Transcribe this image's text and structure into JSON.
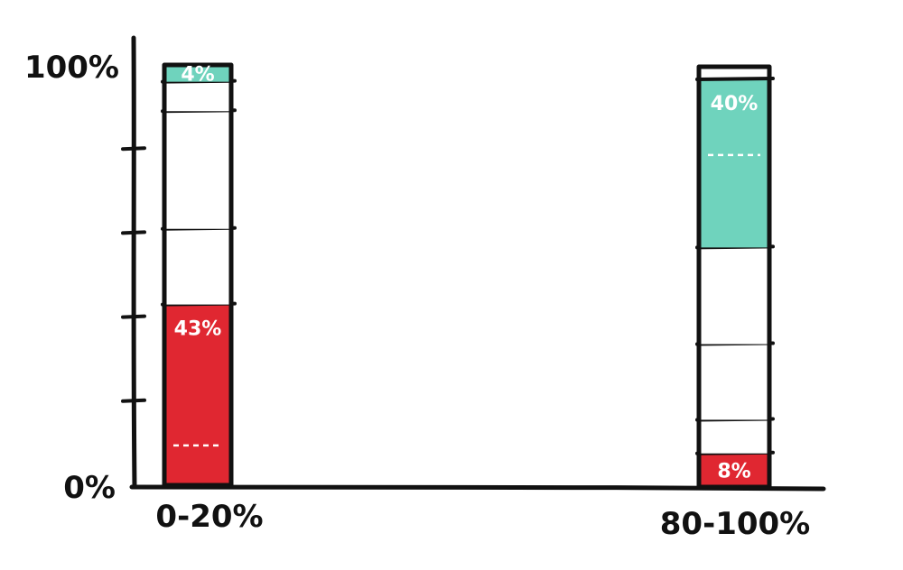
{
  "chart_data": {
    "type": "bar",
    "stacked": true,
    "categories": [
      "0-20%",
      "80-100%"
    ],
    "ylim": [
      0,
      100
    ],
    "y_tick_labels": [
      "0%",
      "100%"
    ],
    "series": [
      {
        "values": [
          43,
          8
        ],
        "labels": [
          "43%",
          "8%"
        ],
        "color": "#e02731"
      },
      {
        "values": [
          18,
          8
        ],
        "labels": [
          "",
          ""
        ],
        "color": "#ffffff"
      },
      {
        "values": [
          28,
          18
        ],
        "labels": [
          "",
          ""
        ],
        "color": "#ffffff"
      },
      {
        "values": [
          7,
          23
        ],
        "labels": [
          "",
          ""
        ],
        "color": "#ffffff"
      },
      {
        "values": [
          4,
          40
        ],
        "labels": [
          "4%",
          "40%"
        ],
        "color": "#6fd3bd"
      }
    ],
    "grid": false,
    "legend": "none"
  },
  "colors": {
    "ink": "#111111",
    "red": "#e02731",
    "teal": "#6fd3bd"
  }
}
